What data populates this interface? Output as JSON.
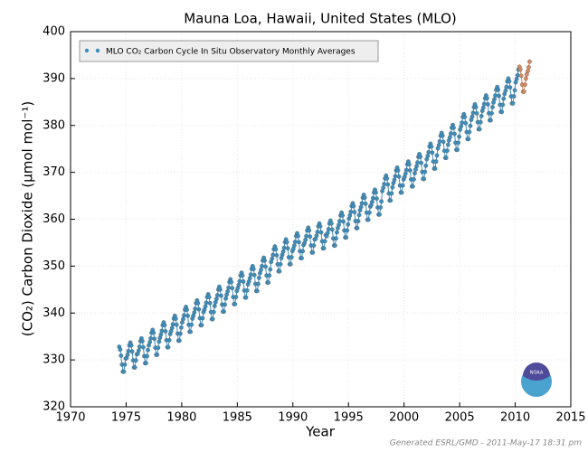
{
  "chart_data": {
    "type": "line",
    "title": "Mauna Loa, Hawaii, United States (MLO)",
    "xlabel": "Year",
    "ylabel": "(CO₂) Carbon Dioxide (μmol mol⁻¹)",
    "footer": "Generated ESRL/GMD - 2011-May-17 18:31 pm",
    "logo_text": "NOAA",
    "xlim": [
      1970,
      2015
    ],
    "xticks": [
      1970,
      1975,
      1980,
      1985,
      1990,
      1995,
      2000,
      2005,
      2010,
      2015
    ],
    "ylim": [
      320,
      400
    ],
    "yticks": [
      320,
      330,
      340,
      350,
      360,
      370,
      380,
      390,
      400
    ],
    "grid": true,
    "legend": "upper left",
    "series": [
      {
        "name": "MLO CO₂ Carbon Cycle In Situ Observatory Monthly Averages",
        "color": "#3a8fc0",
        "x": [
          1974.38,
          1974.46,
          1974.54,
          1974.63,
          1974.71,
          1974.79,
          1974.88,
          1974.96,
          1975.04,
          1975.13,
          1975.21,
          1975.29,
          1975.38,
          1975.46,
          1975.54,
          1975.63,
          1975.71,
          1975.79,
          1975.88,
          1975.96,
          1976.04,
          1976.13,
          1976.21,
          1976.29,
          1976.38,
          1976.46,
          1976.54,
          1976.63,
          1976.71,
          1976.79,
          1976.88,
          1976.96,
          1977.04,
          1977.13,
          1977.21,
          1977.29,
          1977.38,
          1977.46,
          1977.54,
          1977.63,
          1977.71,
          1977.79,
          1977.88,
          1977.96,
          1978.04,
          1978.13,
          1978.21,
          1978.29,
          1978.38,
          1978.46,
          1978.54,
          1978.63,
          1978.71,
          1978.79,
          1978.88,
          1978.96,
          1979.04,
          1979.13,
          1979.21,
          1979.29,
          1979.38,
          1979.46,
          1979.54,
          1979.63,
          1979.71,
          1979.79,
          1979.88,
          1979.96,
          1980.04,
          1980.13,
          1980.21,
          1980.29,
          1980.38,
          1980.46,
          1980.54,
          1980.63,
          1980.71,
          1980.79,
          1980.88,
          1980.96,
          1981.04,
          1981.13,
          1981.21,
          1981.29,
          1981.38,
          1981.46,
          1981.54,
          1981.63,
          1981.71,
          1981.79,
          1981.88,
          1981.96,
          1982.04,
          1982.13,
          1982.21,
          1982.29,
          1982.38,
          1982.46,
          1982.54,
          1982.63,
          1982.71,
          1982.79,
          1982.88,
          1982.96,
          1983.04,
          1983.13,
          1983.21,
          1983.29,
          1983.38,
          1983.46,
          1983.54,
          1983.63,
          1983.71,
          1983.79,
          1983.88,
          1983.96,
          1984.04,
          1984.13,
          1984.21,
          1984.29,
          1984.38,
          1984.46,
          1984.54,
          1984.63,
          1984.71,
          1984.79,
          1984.88,
          1984.96,
          1985.04,
          1985.13,
          1985.21,
          1985.29,
          1985.38,
          1985.46,
          1985.54,
          1985.63,
          1985.71,
          1985.79,
          1985.88,
          1985.96,
          1986.04,
          1986.13,
          1986.21,
          1986.29,
          1986.38,
          1986.46,
          1986.54,
          1986.63,
          1986.71,
          1986.79,
          1986.88,
          1986.96,
          1987.04,
          1987.13,
          1987.21,
          1987.29,
          1987.38,
          1987.46,
          1987.54,
          1987.63,
          1987.71,
          1987.79,
          1987.88,
          1987.96,
          1988.04,
          1988.13,
          1988.21,
          1988.29,
          1988.38,
          1988.46,
          1988.54,
          1988.63,
          1988.71,
          1988.79,
          1988.88,
          1988.96,
          1989.04,
          1989.13,
          1989.21,
          1989.29,
          1989.38,
          1989.46,
          1989.54,
          1989.63,
          1989.71,
          1989.79,
          1989.88,
          1989.96,
          1990.04,
          1990.13,
          1990.21,
          1990.29,
          1990.38,
          1990.46,
          1990.54,
          1990.63,
          1990.71,
          1990.79,
          1990.88,
          1990.96,
          1991.04,
          1991.13,
          1991.21,
          1991.29,
          1991.38,
          1991.46,
          1991.54,
          1991.63,
          1991.71,
          1991.79,
          1991.88,
          1991.96,
          1992.04,
          1992.13,
          1992.21,
          1992.29,
          1992.38,
          1992.46,
          1992.54,
          1992.63,
          1992.71,
          1992.79,
          1992.88,
          1992.96,
          1993.04,
          1993.13,
          1993.21,
          1993.29,
          1993.38,
          1993.46,
          1993.54,
          1993.63,
          1993.71,
          1993.79,
          1993.88,
          1993.96,
          1994.04,
          1994.13,
          1994.21,
          1994.29,
          1994.38,
          1994.46,
          1994.54,
          1994.63,
          1994.71,
          1994.79,
          1994.88,
          1994.96,
          1995.04,
          1995.13,
          1995.21,
          1995.29,
          1995.38,
          1995.46,
          1995.54,
          1995.63,
          1995.71,
          1995.79,
          1995.88,
          1995.96,
          1996.04,
          1996.13,
          1996.21,
          1996.29,
          1996.38,
          1996.46,
          1996.54,
          1996.63,
          1996.71,
          1996.79,
          1996.88,
          1996.96,
          1997.04,
          1997.13,
          1997.21,
          1997.29,
          1997.38,
          1997.46,
          1997.54,
          1997.63,
          1997.71,
          1997.79,
          1997.88,
          1997.96,
          1998.04,
          1998.13,
          1998.21,
          1998.29,
          1998.38,
          1998.46,
          1998.54,
          1998.63,
          1998.71,
          1998.79,
          1998.88,
          1998.96,
          1999.04,
          1999.13,
          1999.21,
          1999.29,
          1999.38,
          1999.46,
          1999.54,
          1999.63,
          1999.71,
          1999.79,
          1999.88,
          1999.96,
          2000.04,
          2000.13,
          2000.21,
          2000.29,
          2000.38,
          2000.46,
          2000.54,
          2000.63,
          2000.71,
          2000.79,
          2000.88,
          2000.96,
          2001.04,
          2001.13,
          2001.21,
          2001.29,
          2001.38,
          2001.46,
          2001.54,
          2001.63,
          2001.71,
          2001.79,
          2001.88,
          2001.96,
          2002.04,
          2002.13,
          2002.21,
          2002.29,
          2002.38,
          2002.46,
          2002.54,
          2002.63,
          2002.71,
          2002.79,
          2002.88,
          2002.96,
          2003.04,
          2003.13,
          2003.21,
          2003.29,
          2003.38,
          2003.46,
          2003.54,
          2003.63,
          2003.71,
          2003.79,
          2003.88,
          2003.96,
          2004.04,
          2004.13,
          2004.21,
          2004.29,
          2004.38,
          2004.46,
          2004.54,
          2004.63,
          2004.71,
          2004.79,
          2004.88,
          2004.96,
          2005.04,
          2005.13,
          2005.21,
          2005.29,
          2005.38,
          2005.46,
          2005.54,
          2005.63,
          2005.71,
          2005.79,
          2005.88,
          2005.96,
          2006.04,
          2006.13,
          2006.21,
          2006.29,
          2006.38,
          2006.46,
          2006.54,
          2006.63,
          2006.71,
          2006.79,
          2006.88,
          2006.96,
          2007.04,
          2007.13,
          2007.21,
          2007.29,
          2007.38,
          2007.46,
          2007.54,
          2007.63,
          2007.71,
          2007.79,
          2007.88,
          2007.96,
          2008.04,
          2008.13,
          2008.21,
          2008.29,
          2008.38,
          2008.46,
          2008.54,
          2008.63,
          2008.71,
          2008.79,
          2008.88,
          2008.96,
          2009.04,
          2009.13,
          2009.21,
          2009.29,
          2009.38,
          2009.46,
          2009.54,
          2009.63,
          2009.71,
          2009.79,
          2009.88,
          2009.96,
          2010.04,
          2010.13,
          2010.21,
          2010.29
        ],
        "values": [
          332.8,
          332.2,
          330.9,
          329.0,
          327.5,
          327.5,
          329.0,
          330.3,
          330.4,
          331.1,
          331.9,
          333.1,
          333.7,
          333.1,
          331.8,
          329.9,
          328.4,
          328.4,
          329.9,
          331.2,
          331.3,
          332.0,
          332.8,
          334.0,
          334.6,
          334.0,
          332.7,
          330.8,
          329.3,
          329.3,
          330.8,
          332.1,
          333.1,
          333.8,
          334.6,
          335.8,
          336.4,
          335.8,
          334.5,
          332.6,
          331.1,
          331.1,
          332.6,
          333.9,
          334.7,
          335.4,
          336.2,
          337.4,
          338.0,
          337.4,
          336.1,
          334.2,
          332.7,
          332.7,
          334.2,
          335.5,
          336.1,
          336.8,
          337.6,
          338.8,
          339.4,
          338.8,
          337.5,
          335.6,
          334.1,
          334.1,
          335.6,
          336.9,
          338.0,
          338.7,
          339.5,
          340.7,
          341.3,
          340.7,
          339.4,
          337.5,
          336.0,
          336.0,
          337.5,
          338.8,
          339.4,
          340.1,
          340.9,
          342.1,
          342.7,
          342.1,
          340.8,
          338.9,
          337.4,
          337.4,
          338.9,
          340.2,
          340.7,
          341.4,
          342.2,
          343.4,
          344.0,
          343.4,
          342.1,
          340.2,
          338.7,
          338.7,
          340.2,
          341.5,
          342.3,
          343.0,
          343.8,
          345.0,
          345.6,
          345.0,
          343.7,
          341.8,
          340.3,
          340.3,
          341.8,
          343.1,
          343.9,
          344.6,
          345.4,
          346.6,
          347.2,
          346.6,
          345.3,
          343.4,
          341.9,
          341.9,
          343.4,
          344.7,
          345.3,
          346.0,
          346.8,
          348.0,
          348.6,
          348.0,
          346.7,
          344.8,
          343.3,
          343.3,
          344.8,
          346.1,
          346.7,
          347.4,
          348.2,
          349.4,
          350.0,
          349.4,
          348.1,
          346.2,
          344.7,
          344.7,
          346.2,
          347.5,
          348.5,
          349.2,
          350.0,
          351.2,
          351.8,
          351.2,
          349.9,
          348.0,
          346.5,
          346.5,
          348.0,
          349.3,
          350.9,
          351.6,
          352.4,
          353.6,
          354.2,
          353.6,
          352.3,
          350.4,
          348.9,
          348.9,
          350.4,
          351.7,
          352.4,
          353.1,
          353.9,
          355.1,
          355.7,
          355.1,
          353.8,
          351.9,
          350.4,
          350.4,
          351.9,
          353.2,
          353.7,
          354.4,
          355.2,
          356.4,
          357.0,
          356.4,
          355.1,
          353.2,
          351.7,
          351.7,
          353.2,
          354.5,
          354.9,
          355.6,
          356.4,
          357.6,
          358.2,
          357.6,
          356.3,
          354.4,
          352.9,
          352.9,
          354.4,
          355.7,
          355.8,
          356.5,
          357.3,
          358.5,
          359.1,
          358.5,
          357.2,
          355.3,
          353.8,
          353.8,
          355.3,
          356.6,
          356.4,
          357.1,
          357.9,
          359.1,
          359.7,
          359.1,
          357.8,
          355.9,
          354.4,
          354.4,
          355.9,
          357.2,
          358.1,
          358.8,
          359.6,
          360.8,
          361.4,
          360.8,
          359.5,
          357.6,
          356.1,
          356.1,
          357.6,
          358.9,
          360.1,
          360.8,
          361.6,
          362.8,
          363.4,
          362.8,
          361.5,
          359.6,
          358.1,
          358.1,
          359.6,
          360.9,
          361.9,
          362.6,
          363.4,
          364.6,
          365.2,
          364.6,
          363.3,
          361.4,
          359.9,
          359.9,
          361.4,
          362.7,
          363.0,
          363.7,
          364.5,
          365.7,
          366.3,
          365.7,
          364.4,
          362.5,
          361.0,
          361.0,
          362.5,
          363.8,
          366.0,
          366.7,
          367.5,
          368.7,
          369.3,
          368.7,
          367.4,
          365.5,
          364.0,
          364.0,
          365.5,
          366.8,
          367.7,
          368.4,
          369.2,
          370.4,
          371.0,
          370.4,
          369.1,
          367.2,
          365.7,
          365.7,
          367.2,
          368.5,
          369.0,
          369.7,
          370.5,
          371.7,
          372.3,
          371.7,
          370.4,
          368.5,
          367.0,
          367.0,
          368.5,
          369.8,
          370.6,
          371.3,
          372.1,
          373.3,
          373.9,
          373.3,
          372.0,
          370.1,
          368.6,
          368.6,
          370.1,
          371.4,
          372.8,
          373.5,
          374.3,
          375.5,
          376.1,
          375.5,
          374.2,
          372.3,
          370.8,
          370.8,
          372.3,
          373.6,
          375.1,
          375.8,
          376.6,
          377.8,
          378.4,
          377.8,
          376.5,
          374.6,
          373.1,
          373.1,
          374.6,
          375.9,
          376.8,
          377.5,
          378.3,
          379.5,
          380.1,
          379.5,
          378.2,
          376.3,
          374.8,
          374.8,
          376.3,
          377.6,
          379.1,
          379.8,
          380.6,
          381.8,
          382.4,
          381.8,
          380.5,
          378.6,
          377.1,
          377.1,
          378.6,
          379.9,
          381.2,
          381.9,
          382.7,
          383.9,
          384.5,
          383.9,
          382.6,
          380.7,
          379.2,
          379.2,
          380.7,
          382.0,
          383.1,
          383.8,
          384.6,
          385.8,
          386.4,
          385.8,
          384.5,
          382.6,
          381.1,
          381.1,
          382.6,
          383.9,
          384.9,
          385.6,
          386.4,
          387.6,
          388.2,
          387.6,
          386.3,
          384.4,
          382.9,
          382.9,
          384.4,
          385.7,
          386.7,
          387.4,
          388.2,
          389.4,
          390.0,
          389.4,
          388.1,
          386.2,
          384.7,
          384.7,
          386.2,
          387.5,
          389.2,
          389.9,
          390.7,
          391.9
        ]
      },
      {
        "color": "#d98b5f",
        "x": [
          2010.38,
          2010.46,
          2010.54,
          2010.63,
          2010.71,
          2010.79,
          2010.88,
          2010.96,
          2011.04,
          2011.13,
          2011.21,
          2011.29
        ],
        "values": [
          392.5,
          391.9,
          390.6,
          388.7,
          387.2,
          387.2,
          388.7,
          390.0,
          390.9,
          391.6,
          392.4,
          393.6
        ]
      }
    ]
  }
}
